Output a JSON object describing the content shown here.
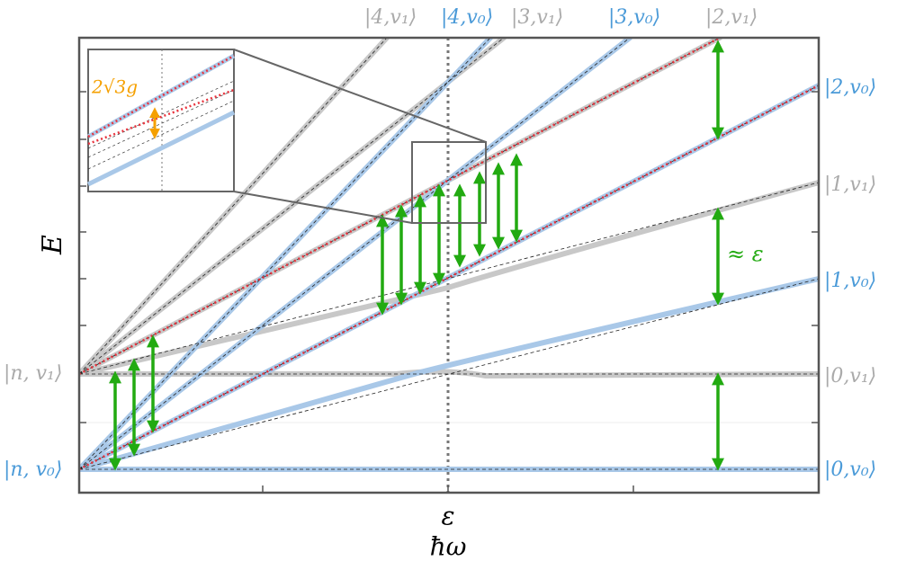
{
  "labels": {
    "top": [
      "|4,v₁⟩",
      "|4,v₀⟩",
      "|3,v₁⟩",
      "|3,v₀⟩",
      "|2,v₁⟩"
    ],
    "right": [
      "|2,v₀⟩",
      "|1,v₁⟩",
      "|1,v₀⟩",
      "|0,v₁⟩",
      "|0,v₀⟩"
    ],
    "left": [
      "|n, v₁⟩",
      "|n, v₀⟩"
    ],
    "y_axis": "E",
    "x_tick": "ε",
    "x_axis": "ħω",
    "gap": "≈ ε",
    "inset": "2√3g"
  }
}
